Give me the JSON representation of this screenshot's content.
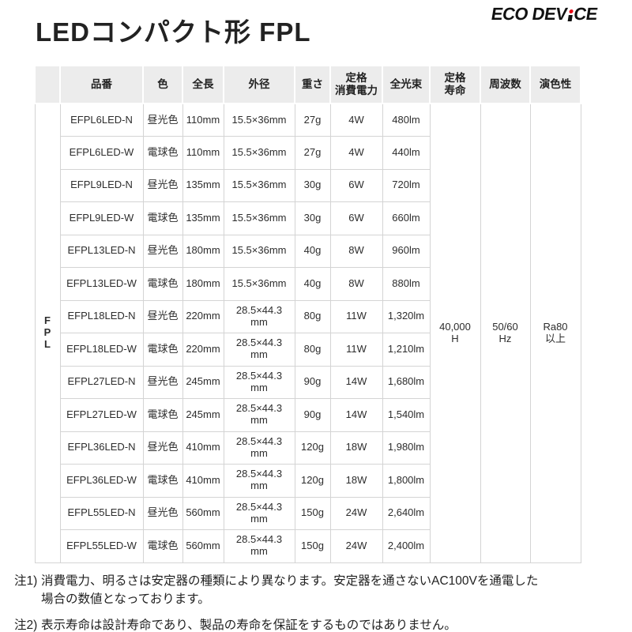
{
  "header": {
    "title": "LEDコンパクト形 FPL",
    "logo_left": "ECO DEV",
    "logo_right": "CE"
  },
  "colors": {
    "accent_red": "#c1212b",
    "day_color_bg": "#c9e5f4",
    "bulb_color_bg": "#f9dc9b",
    "header_bg": "#ececec"
  },
  "table": {
    "group_label": "FPL",
    "columns": [
      "品番",
      "色",
      "全長",
      "外径",
      "重さ",
      "定格\n消費電力",
      "全光束",
      "定格\n寿命",
      "周波数",
      "演色性"
    ],
    "merged": {
      "rated_life": "40,000\nH",
      "frequency": "50/60\nHz",
      "color_rendering": "Ra80\n以上"
    },
    "rows": [
      {
        "model": "EFPL6LED-N",
        "color": "昼光色",
        "color_type": "day",
        "length": "110mm",
        "diameter": "15.5×36mm",
        "weight": "27g",
        "power": "4W",
        "flux": "480lm"
      },
      {
        "model": "EFPL6LED-W",
        "color": "電球色",
        "color_type": "bulb",
        "length": "110mm",
        "diameter": "15.5×36mm",
        "weight": "27g",
        "power": "4W",
        "flux": "440lm"
      },
      {
        "model": "EFPL9LED-N",
        "color": "昼光色",
        "color_type": "day",
        "length": "135mm",
        "diameter": "15.5×36mm",
        "weight": "30g",
        "power": "6W",
        "flux": "720lm"
      },
      {
        "model": "EFPL9LED-W",
        "color": "電球色",
        "color_type": "bulb",
        "length": "135mm",
        "diameter": "15.5×36mm",
        "weight": "30g",
        "power": "6W",
        "flux": "660lm"
      },
      {
        "model": "EFPL13LED-N",
        "color": "昼光色",
        "color_type": "day",
        "length": "180mm",
        "diameter": "15.5×36mm",
        "weight": "40g",
        "power": "8W",
        "flux": "960lm"
      },
      {
        "model": "EFPL13LED-W",
        "color": "電球色",
        "color_type": "bulb",
        "length": "180mm",
        "diameter": "15.5×36mm",
        "weight": "40g",
        "power": "8W",
        "flux": "880lm"
      },
      {
        "model": "EFPL18LED-N",
        "color": "昼光色",
        "color_type": "day",
        "length": "220mm",
        "diameter": "28.5×44.3\nmm",
        "weight": "80g",
        "power": "11W",
        "flux": "1,320lm"
      },
      {
        "model": "EFPL18LED-W",
        "color": "電球色",
        "color_type": "bulb",
        "length": "220mm",
        "diameter": "28.5×44.3\nmm",
        "weight": "80g",
        "power": "11W",
        "flux": "1,210lm"
      },
      {
        "model": "EFPL27LED-N",
        "color": "昼光色",
        "color_type": "day",
        "length": "245mm",
        "diameter": "28.5×44.3\nmm",
        "weight": "90g",
        "power": "14W",
        "flux": "1,680lm"
      },
      {
        "model": "EFPL27LED-W",
        "color": "電球色",
        "color_type": "bulb",
        "length": "245mm",
        "diameter": "28.5×44.3\nmm",
        "weight": "90g",
        "power": "14W",
        "flux": "1,540lm"
      },
      {
        "model": "EFPL36LED-N",
        "color": "昼光色",
        "color_type": "day",
        "length": "410mm",
        "diameter": "28.5×44.3\nmm",
        "weight": "120g",
        "power": "18W",
        "flux": "1,980lm"
      },
      {
        "model": "EFPL36LED-W",
        "color": "電球色",
        "color_type": "bulb",
        "length": "410mm",
        "diameter": "28.5×44.3\nmm",
        "weight": "120g",
        "power": "18W",
        "flux": "1,800lm"
      },
      {
        "model": "EFPL55LED-N",
        "color": "昼光色",
        "color_type": "day",
        "length": "560mm",
        "diameter": "28.5×44.3\nmm",
        "weight": "150g",
        "power": "24W",
        "flux": "2,640lm"
      },
      {
        "model": "EFPL55LED-W",
        "color": "電球色",
        "color_type": "bulb",
        "length": "560mm",
        "diameter": "28.5×44.3\nmm",
        "weight": "150g",
        "power": "24W",
        "flux": "2,400lm"
      }
    ]
  },
  "notes": [
    {
      "label": "注1)",
      "text": "消費電力、明るさは安定器の種類により異なります。安定器を通さないAC100Vを通電した\n場合の数値となっております。"
    },
    {
      "label": "注2)",
      "text": "表示寿命は設計寿命であり、製品の寿命を保証をするものではありません。"
    }
  ]
}
